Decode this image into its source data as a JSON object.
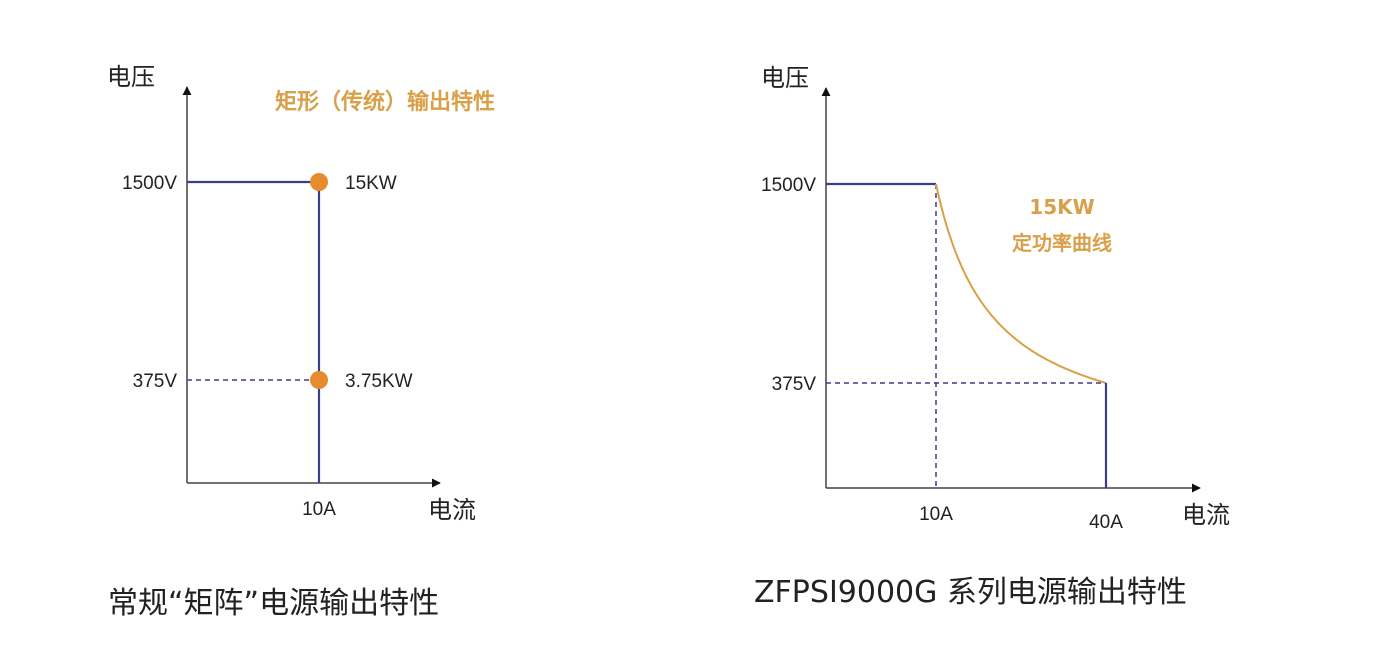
{
  "colors": {
    "curve": "#3d3d8f",
    "accent": "#d9a04a",
    "point": "#e88a2e",
    "axis": "#444444"
  },
  "chart_data": [
    {
      "type": "line",
      "title": "矩形（传统）输出特性",
      "caption": "常规“矩阵”电源输出特性",
      "xlabel": "电流",
      "ylabel": "电压",
      "x_ticks": [
        "10A"
      ],
      "y_ticks": [
        "1500V",
        "375V"
      ],
      "series": [
        {
          "points": [
            {
              "x": 0,
              "y": 1500
            },
            {
              "x": 10,
              "y": 1500
            },
            {
              "x": 10,
              "y": 0
            }
          ]
        }
      ],
      "guides": [
        {
          "from": {
            "x": 0,
            "y": 375
          },
          "to": {
            "x": 10,
            "y": 375
          }
        }
      ],
      "annotations": [
        {
          "x": 10,
          "y": 1500,
          "label": "15KW"
        },
        {
          "x": 10,
          "y": 375,
          "label": "3.75KW"
        }
      ],
      "xlim": [
        0,
        40
      ],
      "ylim": [
        0,
        2000
      ]
    },
    {
      "type": "line",
      "caption": "ZFPSI9000G 系列电源输出特性",
      "xlabel": "电流",
      "ylabel": "电压",
      "x_ticks": [
        "10A",
        "40A"
      ],
      "y_ticks": [
        "1500V",
        "375V"
      ],
      "series": [
        {
          "points": [
            {
              "x": 0,
              "y": 1500
            },
            {
              "x": 10,
              "y": 1500
            }
          ]
        },
        {
          "points": [
            {
              "x": 10,
              "y": 1500
            },
            {
              "x": 40,
              "y": 375
            }
          ]
        },
        {
          "points": [
            {
              "x": 40,
              "y": 375
            },
            {
              "x": 40,
              "y": 0
            }
          ]
        }
      ],
      "guides": [
        {
          "from": {
            "x": 0,
            "y": 375
          },
          "to": {
            "x": 40,
            "y": 375
          }
        },
        {
          "from": {
            "x": 10,
            "y": 1500
          },
          "to": {
            "x": 10,
            "y": 0
          }
        }
      ],
      "curve_label": [
        "15KW",
        "定功率曲线"
      ],
      "xlim": [
        0,
        48
      ],
      "ylim": [
        0,
        2000
      ]
    }
  ]
}
